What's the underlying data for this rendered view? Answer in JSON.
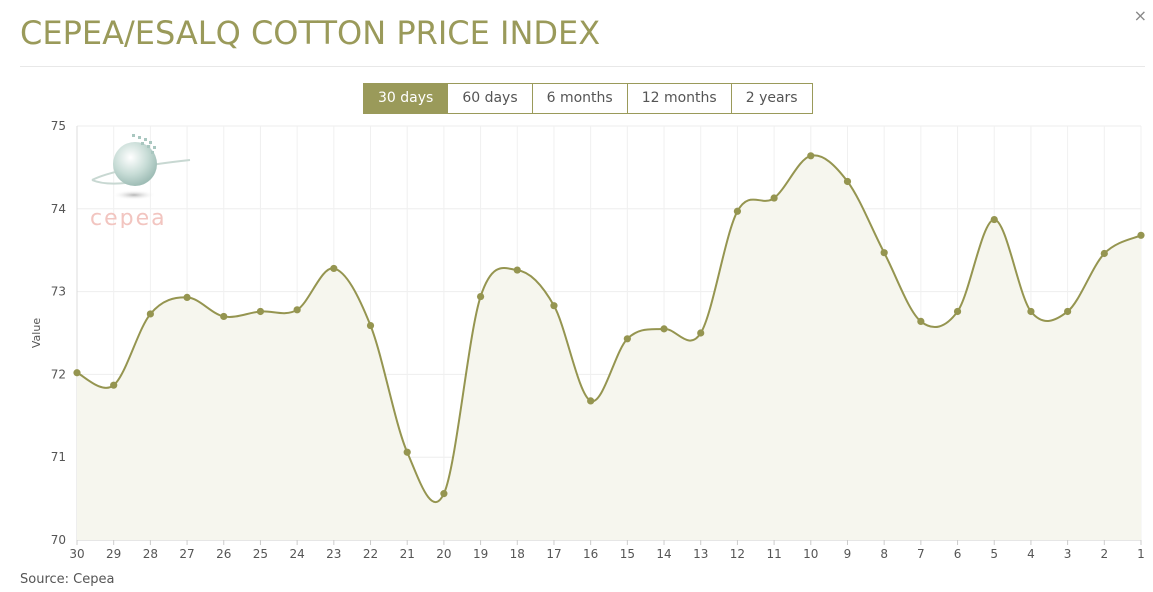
{
  "title": "CEPEA/ESALQ COTTON PRICE INDEX",
  "close_label": "×",
  "ranges": [
    {
      "label": "30 days",
      "active": true
    },
    {
      "label": "60 days",
      "active": false
    },
    {
      "label": "6 months",
      "active": false
    },
    {
      "label": "12 months",
      "active": false
    },
    {
      "label": "2 years",
      "active": false
    }
  ],
  "logo_text": "cepea",
  "source": "Source: Cepea",
  "colors": {
    "accent": "#9a9a5a",
    "line": "#959550",
    "fill": "#f6f6ee",
    "grid": "#eeeeee"
  },
  "chart_data": {
    "type": "area",
    "xlabel": "",
    "ylabel": "Value",
    "ylim": [
      70,
      75
    ],
    "yticks": [
      70,
      71,
      72,
      73,
      74,
      75
    ],
    "grid": true,
    "categories": [
      "30",
      "29",
      "28",
      "27",
      "26",
      "25",
      "24",
      "23",
      "22",
      "21",
      "20",
      "19",
      "18",
      "17",
      "16",
      "15",
      "14",
      "13",
      "12",
      "11",
      "10",
      "9",
      "8",
      "7",
      "6",
      "5",
      "4",
      "3",
      "2",
      "1"
    ],
    "series": [
      {
        "values": [
          72.02,
          71.87,
          72.73,
          72.93,
          72.7,
          72.76,
          72.78,
          73.28,
          72.59,
          71.06,
          70.56,
          72.94,
          73.26,
          72.83,
          71.68,
          72.43,
          72.55,
          72.5,
          73.97,
          74.13,
          74.64,
          74.33,
          73.47,
          72.64,
          72.76,
          73.87,
          72.76,
          72.76,
          73.46,
          73.68
        ]
      }
    ]
  }
}
